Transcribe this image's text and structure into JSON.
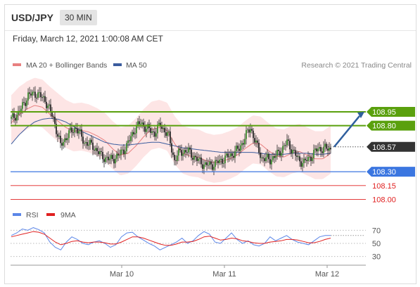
{
  "header": {
    "symbol": "USD/JPY",
    "timeframe": "30 MIN"
  },
  "datetime": "Friday, March 12, 2021 1:00:08 AM CET",
  "legend": {
    "ma20_label": "MA 20 + Bollinger Bands",
    "ma50_label": "MA 50",
    "research": "Research © 2021 Trading Central"
  },
  "colors": {
    "up": "#3d8b2e",
    "down": "#3d8b2e",
    "ma20": "#e88080",
    "ma50": "#3b5c9e",
    "green_level": "#5aa00d",
    "blue_level": "#3b76e0",
    "red_level": "#e02020",
    "current": "#333333",
    "arrow": "#2f5f9e",
    "rsi": "#5b86e8",
    "rsi_ma": "#e02020"
  },
  "chart_data": [
    {
      "type": "candlestick",
      "title": "",
      "x_tick_labels": [
        "Mar 10",
        "Mar 11",
        "Mar 12"
      ],
      "ylim": [
        107.95,
        109.4
      ],
      "current_price": "108.57",
      "levels": [
        {
          "label": "108.95",
          "value": 108.95,
          "kind": "resistance"
        },
        {
          "label": "108.80",
          "value": 108.8,
          "kind": "resistance"
        },
        {
          "label": "108.30",
          "value": 108.3,
          "kind": "pivot"
        },
        {
          "label": "108.15",
          "value": 108.15,
          "kind": "support"
        },
        {
          "label": "108.00",
          "value": 108.0,
          "kind": "support"
        }
      ],
      "close_path": [
        {
          "i": 0,
          "v": 108.87
        },
        {
          "i": 6,
          "v": 108.95
        },
        {
          "i": 12,
          "v": 109.13
        },
        {
          "i": 18,
          "v": 109.15
        },
        {
          "i": 24,
          "v": 109.08
        },
        {
          "i": 30,
          "v": 108.88
        },
        {
          "i": 35,
          "v": 108.58
        },
        {
          "i": 40,
          "v": 108.7
        },
        {
          "i": 46,
          "v": 108.78
        },
        {
          "i": 52,
          "v": 108.62
        },
        {
          "i": 58,
          "v": 108.58
        },
        {
          "i": 64,
          "v": 108.47
        },
        {
          "i": 70,
          "v": 108.43
        },
        {
          "i": 76,
          "v": 108.47
        },
        {
          "i": 82,
          "v": 108.58
        },
        {
          "i": 88,
          "v": 108.77
        },
        {
          "i": 92,
          "v": 108.83
        },
        {
          "i": 96,
          "v": 108.77
        },
        {
          "i": 102,
          "v": 108.72
        },
        {
          "i": 106,
          "v": 108.81
        },
        {
          "i": 112,
          "v": 108.68
        },
        {
          "i": 116,
          "v": 108.42
        },
        {
          "i": 120,
          "v": 108.52
        },
        {
          "i": 126,
          "v": 108.52
        },
        {
          "i": 132,
          "v": 108.43
        },
        {
          "i": 138,
          "v": 108.37
        },
        {
          "i": 144,
          "v": 108.38
        },
        {
          "i": 150,
          "v": 108.43
        },
        {
          "i": 156,
          "v": 108.48
        },
        {
          "i": 162,
          "v": 108.55
        },
        {
          "i": 166,
          "v": 108.67
        },
        {
          "i": 170,
          "v": 108.78
        },
        {
          "i": 174,
          "v": 108.6
        },
        {
          "i": 178,
          "v": 108.45
        },
        {
          "i": 184,
          "v": 108.43
        },
        {
          "i": 190,
          "v": 108.5
        },
        {
          "i": 196,
          "v": 108.62
        },
        {
          "i": 200,
          "v": 108.53
        },
        {
          "i": 204,
          "v": 108.43
        },
        {
          "i": 208,
          "v": 108.4
        },
        {
          "i": 212,
          "v": 108.45
        },
        {
          "i": 218,
          "v": 108.55
        }
      ],
      "ma20": [
        108.83,
        108.92,
        108.98,
        109.02,
        109.0,
        108.92,
        108.85,
        108.78,
        108.74,
        108.75,
        108.73,
        108.69,
        108.64,
        108.55,
        108.48,
        108.5,
        108.58,
        108.68,
        108.76,
        108.78,
        108.75,
        108.6,
        108.5,
        108.47,
        108.46,
        108.42,
        108.4,
        108.41,
        108.44,
        108.48,
        108.55,
        108.61,
        108.6,
        108.53,
        108.47,
        108.46,
        108.5,
        108.52,
        108.48,
        108.44,
        108.44,
        108.5
      ],
      "ma50": [
        108.6,
        108.7,
        108.78,
        108.84,
        108.87,
        108.88,
        108.87,
        108.84,
        108.79,
        108.74,
        108.7,
        108.66,
        108.62,
        108.6,
        108.59,
        108.59,
        108.6,
        108.61,
        108.62,
        108.62,
        108.6,
        108.58,
        108.56,
        108.55,
        108.54,
        108.53,
        108.52,
        108.51,
        108.51,
        108.51,
        108.51,
        108.51,
        108.5,
        108.49,
        108.49,
        108.49,
        108.5,
        108.5,
        108.5,
        108.49,
        108.49,
        108.5
      ],
      "bands": {
        "upper_offset": 0.3,
        "lower_offset": 0.22
      }
    },
    {
      "type": "line",
      "title": "RSI",
      "legend": [
        "RSI",
        "9MA"
      ],
      "y_tick_labels": [
        "70",
        "50",
        "30"
      ],
      "ylim": [
        20,
        80
      ],
      "rsi": [
        62,
        66,
        72,
        70,
        74,
        71,
        66,
        52,
        44,
        40,
        52,
        60,
        56,
        50,
        48,
        52,
        54,
        50,
        44,
        48,
        60,
        66,
        67,
        60,
        55,
        50,
        46,
        40,
        44,
        48,
        52,
        58,
        50,
        54,
        62,
        68,
        64,
        52,
        50,
        58,
        66,
        56,
        50,
        54,
        48,
        46,
        50,
        60,
        54,
        58,
        62,
        56,
        52,
        50,
        48,
        54,
        60,
        62,
        62
      ],
      "rsi_ma": [
        60,
        62,
        64,
        66,
        68,
        67,
        64,
        58,
        52,
        48,
        50,
        53,
        54,
        52,
        51,
        52,
        52,
        51,
        49,
        49,
        52,
        56,
        60,
        60,
        58,
        55,
        52,
        49,
        47,
        47,
        49,
        52,
        52,
        53,
        56,
        60,
        61,
        58,
        55,
        56,
        58,
        57,
        54,
        53,
        51,
        50,
        50,
        52,
        53,
        54,
        56,
        56,
        55,
        53,
        51,
        51,
        53,
        56,
        58
      ]
    }
  ]
}
